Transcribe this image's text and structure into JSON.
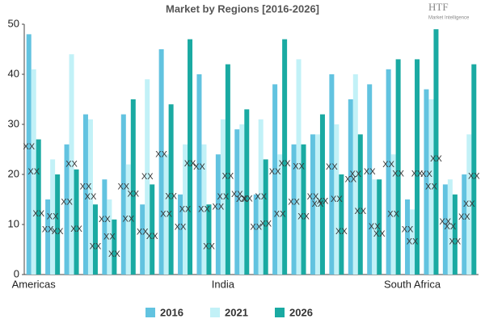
{
  "chart_data": {
    "type": "bar",
    "title": "Market by Regions [2016-2026]",
    "logo": {
      "mark": "HTF",
      "text": "Market Intelligence"
    },
    "categories": [
      "Americas",
      null,
      null,
      null,
      null,
      null,
      null,
      null,
      null,
      null,
      "India",
      null,
      null,
      null,
      null,
      null,
      null,
      null,
      null,
      null,
      "South Africa",
      null,
      null,
      null
    ],
    "series": [
      {
        "name": "2016",
        "color": "#62c3e0",
        "values": [
          48,
          15,
          26,
          32,
          19,
          32,
          14,
          45,
          16,
          40,
          24,
          29,
          16,
          38,
          26,
          28,
          40,
          35,
          38,
          41,
          15,
          37,
          18,
          20
        ],
        "value_labels": [
          "XX",
          "XX",
          "XX",
          "XX",
          "XX",
          "XX",
          "XX",
          "XX",
          "XX",
          "XX",
          "XX",
          "XX",
          "XX",
          "XX",
          "XX",
          "XX",
          "XX",
          "XX",
          "XX",
          "XX",
          "XX",
          "XX",
          "XX",
          "XX"
        ]
      },
      {
        "name": "2021",
        "color": "#c2f1f7",
        "values": [
          41,
          23,
          44,
          31,
          15,
          22,
          39,
          24,
          26,
          26,
          31,
          30,
          31,
          24,
          43,
          28,
          30,
          40,
          19,
          24,
          13,
          35,
          19,
          28
        ],
        "value_labels": [
          "XX",
          "XX",
          "XX",
          "XX",
          "XX",
          "XX",
          "XX",
          "XX",
          "XX",
          "XX",
          "XX",
          "XX",
          "XX",
          "XX",
          "XX",
          "XX",
          "XX",
          "XX",
          "XX",
          "XX",
          "XX",
          "XX",
          "XX",
          "XX"
        ]
      },
      {
        "name": "2026",
        "color": "#1aaaa2",
        "values": [
          27,
          20,
          21,
          14,
          11,
          35,
          18,
          34,
          47,
          14,
          42,
          33,
          23,
          47,
          26,
          32,
          20,
          28,
          19,
          43,
          43,
          49,
          16,
          42
        ],
        "value_labels": [
          "XX",
          "XX",
          "XX",
          "XX",
          "XX",
          "XX",
          "XX",
          "XX",
          "XX",
          "XX",
          "XX",
          "XX",
          "XX",
          "XX",
          "XX",
          "XX",
          "XX",
          "XX",
          "XX",
          "XX",
          "XX",
          "XX",
          "XX",
          "XX"
        ]
      }
    ],
    "ylim": [
      0,
      50
    ],
    "yticks": [
      0,
      10,
      20,
      30,
      40,
      50
    ],
    "grid": false,
    "legend": "bottom"
  }
}
